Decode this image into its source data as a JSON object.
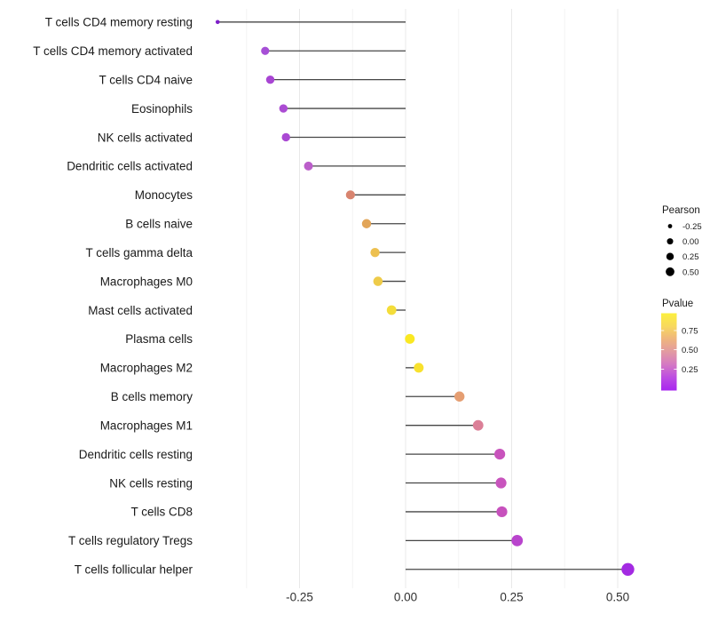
{
  "chart_data": {
    "type": "bar",
    "subtype": "horizontal-lollipop",
    "title": "",
    "xlabel": "",
    "ylabel": "",
    "categories": [
      "T cells CD4 memory resting",
      "T cells CD4 memory activated",
      "T cells CD4 naive",
      "Eosinophils",
      "NK cells activated",
      "Dendritic cells activated",
      "Monocytes",
      "B cells naive",
      "T cells gamma delta",
      "Macrophages M0",
      "Mast cells activated",
      "Plasma cells",
      "Macrophages M2",
      "B cells memory",
      "Macrophages M1",
      "Dendritic cells resting",
      "NK cells resting",
      "T cells CD8",
      "T cells regulatory  Tregs",
      "T cells follicular helper"
    ],
    "values": [
      -0.443,
      -0.331,
      -0.319,
      -0.288,
      -0.282,
      -0.229,
      -0.13,
      -0.092,
      -0.072,
      -0.065,
      -0.033,
      0.01,
      0.031,
      0.127,
      0.171,
      0.222,
      0.225,
      0.227,
      0.263,
      0.524
    ],
    "dot_colors": [
      "#7e1fc9",
      "#a64fd6",
      "#a845d3",
      "#ab4cd3",
      "#aa49d3",
      "#bb5eca",
      "#d8846f",
      "#e2a558",
      "#edc04f",
      "#eecb49",
      "#f4dd3a",
      "#fae822",
      "#f8e12e",
      "#e59e72",
      "#db7f97",
      "#c853bc",
      "#c854bd",
      "#c751bd",
      "#b944cd",
      "#a32ae2"
    ],
    "dot_radii": [
      2.3,
      4.6,
      4.7,
      4.7,
      4.7,
      5.0,
      5.1,
      5.2,
      5.2,
      5.3,
      5.4,
      5.5,
      5.5,
      5.7,
      5.9,
      6.1,
      6.1,
      6.1,
      6.4,
      7.2
    ],
    "x_ticks": [
      "-0.25",
      "0.00",
      "0.25",
      "0.50"
    ],
    "x_tick_values": [
      -0.25,
      0.0,
      0.25,
      0.5
    ],
    "x_minor_tick_values": [
      -0.375,
      -0.125,
      0.125,
      0.375
    ],
    "xlim": [
      -0.455,
      0.545
    ],
    "grid": "major+minor",
    "legend_position": "right"
  },
  "legend": {
    "size_legend": {
      "title": "Pearson",
      "entries": [
        {
          "label": "-0.25",
          "radius": 2.4
        },
        {
          "label": "0.00",
          "radius": 3.5
        },
        {
          "label": "0.25",
          "radius": 4.2
        },
        {
          "label": "0.50",
          "radius": 4.9
        }
      ],
      "dot_color": "#000000"
    },
    "color_legend": {
      "title": "Pvalue",
      "tick_labels": [
        "0.75",
        "0.50",
        "0.25"
      ],
      "gradient_top_to_bottom": [
        "#fcf03d",
        "#f8d95e",
        "#efb57d",
        "#e29aa2",
        "#d478c4",
        "#bc4ce2",
        "#a826f0"
      ]
    }
  },
  "style": {
    "background": "#ffffff",
    "stem_color": "#464646",
    "grid_major_color": "#e8e8e8",
    "grid_minor_color": "#f3f3f3",
    "axis_text_color": "#303030",
    "label_text_color": "#1a1a1a"
  }
}
